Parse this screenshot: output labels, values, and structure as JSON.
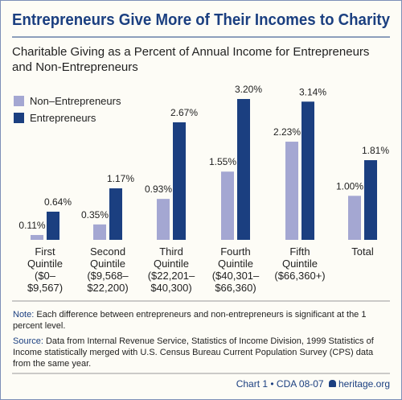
{
  "chart_data": {
    "type": "bar",
    "title": "Entrepreneurs Give More of Their Incomes to Charity",
    "subtitle": [
      "Charitable Giving as a Percent of Annual Income for Entrepreneurs",
      "and Non-Entrepreneurs"
    ],
    "categories": [
      [
        "First",
        "Quintile",
        "($0–",
        "$9,567)"
      ],
      [
        "Second",
        "Quintile",
        "($9,568–",
        "$22,200)"
      ],
      [
        "Third",
        "Quintile",
        "($22,201–",
        "$40,300)"
      ],
      [
        "Fourth",
        "Quintile",
        "($40,301–",
        "$66,360)"
      ],
      [
        "Fifth",
        "Quintile",
        "($66,360+)"
      ],
      [
        "Total"
      ]
    ],
    "series": [
      {
        "name": "Non–Entrepreneurs",
        "color": "#a4a7d2",
        "values": [
          0.11,
          0.35,
          0.93,
          1.55,
          2.23,
          1.0
        ],
        "value_labels": [
          "0.11%",
          "0.35%",
          "0.93%",
          "1.55%",
          "2.23%",
          "1.00%"
        ]
      },
      {
        "name": "Entrepreneurs",
        "color": "#1b3f80",
        "values": [
          0.64,
          1.17,
          2.67,
          3.2,
          3.14,
          1.81
        ],
        "value_labels": [
          "0.64%",
          "1.17%",
          "2.67%",
          "3.20%",
          "3.14%",
          "1.81%"
        ]
      }
    ],
    "legend": "top-left",
    "note": {
      "label": "Note:",
      "text": "Each difference between entrepreneurs and non-entrepreneurs is significant at the 1 percent level."
    },
    "source": {
      "label": "Source:",
      "text": "Data from Internal Revenue Service, Statistics of Income Division, 1999 Statistics of Income statistically merged with U.S. Census Bureau Current Population Survey (CPS) data from the same year."
    },
    "footer": {
      "chart": "Chart 1 • CDA 08-07",
      "site": "heritage.org"
    }
  }
}
